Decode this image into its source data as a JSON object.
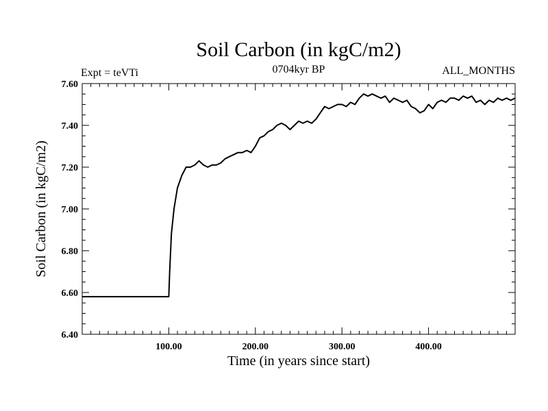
{
  "chart_data": {
    "type": "line",
    "title": "Soil Carbon (in kgC/m2)",
    "subtitle_left": "Expt = teVTi",
    "subtitle_center": "0704kyr BP",
    "subtitle_right": "ALL_MONTHS",
    "xlabel": "Time (in years since start)",
    "ylabel": "Soil Carbon (in kgC/m2)",
    "xlim": [
      0,
      500
    ],
    "ylim": [
      6.4,
      7.6
    ],
    "xticks": [
      100,
      200,
      300,
      400
    ],
    "xtick_labels": [
      "100.00",
      "200.00",
      "300.00",
      "400.00"
    ],
    "yticks": [
      6.4,
      6.6,
      6.8,
      7.0,
      7.2,
      7.4,
      7.6
    ],
    "ytick_labels": [
      "6.40",
      "6.60",
      "6.80",
      "7.00",
      "7.20",
      "7.40",
      "7.60"
    ],
    "grid": false,
    "series": [
      {
        "color": "#000000",
        "points": [
          [
            0,
            6.58
          ],
          [
            100,
            6.58
          ],
          [
            101,
            6.7
          ],
          [
            103,
            6.88
          ],
          [
            106,
            7.0
          ],
          [
            110,
            7.1
          ],
          [
            115,
            7.16
          ],
          [
            120,
            7.2
          ],
          [
            125,
            7.2
          ],
          [
            130,
            7.21
          ],
          [
            135,
            7.23
          ],
          [
            140,
            7.21
          ],
          [
            145,
            7.2
          ],
          [
            150,
            7.21
          ],
          [
            155,
            7.21
          ],
          [
            160,
            7.22
          ],
          [
            165,
            7.24
          ],
          [
            170,
            7.25
          ],
          [
            175,
            7.26
          ],
          [
            180,
            7.27
          ],
          [
            185,
            7.27
          ],
          [
            190,
            7.28
          ],
          [
            195,
            7.27
          ],
          [
            200,
            7.3
          ],
          [
            205,
            7.34
          ],
          [
            210,
            7.35
          ],
          [
            215,
            7.37
          ],
          [
            220,
            7.38
          ],
          [
            225,
            7.4
          ],
          [
            230,
            7.41
          ],
          [
            235,
            7.4
          ],
          [
            240,
            7.38
          ],
          [
            245,
            7.4
          ],
          [
            250,
            7.42
          ],
          [
            255,
            7.41
          ],
          [
            260,
            7.42
          ],
          [
            265,
            7.41
          ],
          [
            270,
            7.43
          ],
          [
            275,
            7.46
          ],
          [
            280,
            7.49
          ],
          [
            285,
            7.48
          ],
          [
            290,
            7.49
          ],
          [
            295,
            7.5
          ],
          [
            300,
            7.5
          ],
          [
            305,
            7.49
          ],
          [
            310,
            7.51
          ],
          [
            315,
            7.5
          ],
          [
            320,
            7.53
          ],
          [
            325,
            7.55
          ],
          [
            330,
            7.54
          ],
          [
            335,
            7.55
          ],
          [
            340,
            7.54
          ],
          [
            345,
            7.53
          ],
          [
            350,
            7.54
          ],
          [
            355,
            7.51
          ],
          [
            360,
            7.53
          ],
          [
            365,
            7.52
          ],
          [
            370,
            7.51
          ],
          [
            375,
            7.52
          ],
          [
            380,
            7.49
          ],
          [
            385,
            7.48
          ],
          [
            390,
            7.46
          ],
          [
            395,
            7.47
          ],
          [
            400,
            7.5
          ],
          [
            405,
            7.48
          ],
          [
            410,
            7.51
          ],
          [
            415,
            7.52
          ],
          [
            420,
            7.51
          ],
          [
            425,
            7.53
          ],
          [
            430,
            7.53
          ],
          [
            435,
            7.52
          ],
          [
            440,
            7.54
          ],
          [
            445,
            7.53
          ],
          [
            450,
            7.54
          ],
          [
            455,
            7.51
          ],
          [
            460,
            7.52
          ],
          [
            465,
            7.5
          ],
          [
            470,
            7.52
          ],
          [
            475,
            7.51
          ],
          [
            480,
            7.53
          ],
          [
            485,
            7.52
          ],
          [
            490,
            7.53
          ],
          [
            495,
            7.52
          ],
          [
            500,
            7.53
          ]
        ]
      }
    ]
  }
}
